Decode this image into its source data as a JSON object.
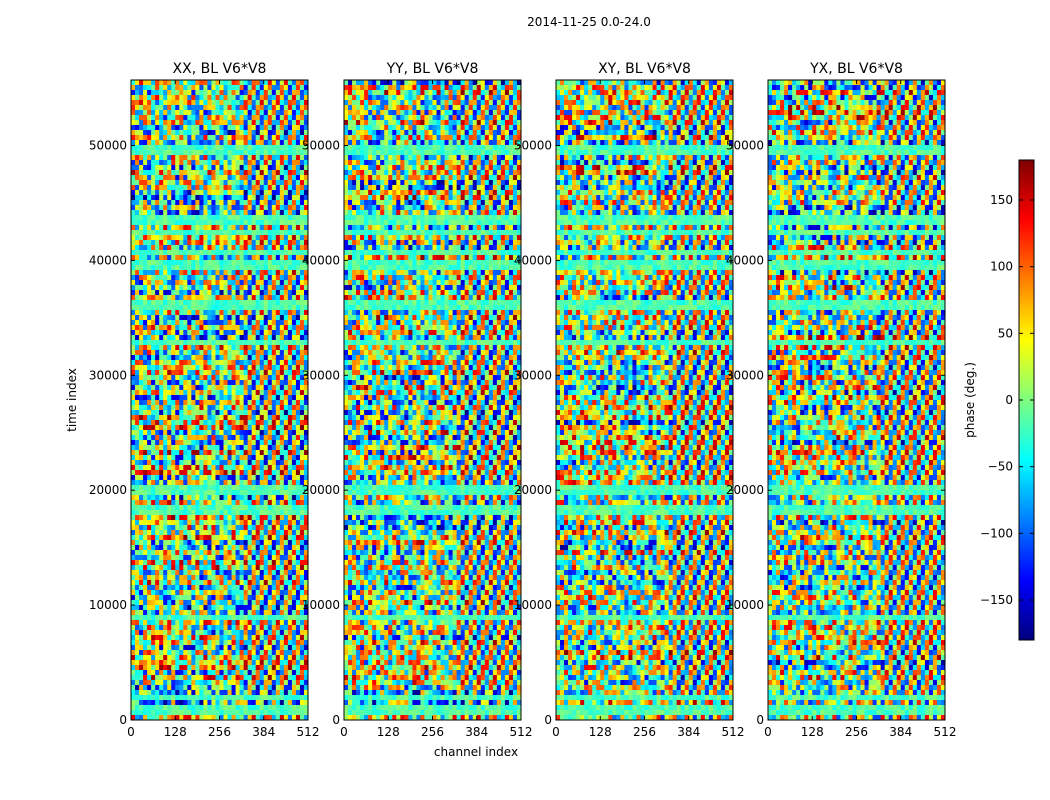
{
  "figure": {
    "suptitle": "2014-11-25 0.0-24.0",
    "xlabel": "channel index",
    "ylabel": "time index"
  },
  "chart_data": [
    {
      "type": "heatmap",
      "title": "XX, BL V6*V8",
      "x_range": [
        0,
        512
      ],
      "y_range": [
        0,
        55700
      ],
      "xticks": [
        0,
        128,
        256,
        384,
        512
      ],
      "yticks": [
        0,
        10000,
        20000,
        30000,
        40000,
        50000
      ],
      "colormap": "jet",
      "value": "phase (deg.)"
    },
    {
      "type": "heatmap",
      "title": "YY, BL V6*V8",
      "x_range": [
        0,
        512
      ],
      "y_range": [
        0,
        55700
      ],
      "xticks": [
        0,
        128,
        256,
        384,
        512
      ],
      "yticks": [
        0,
        10000,
        20000,
        30000,
        40000,
        50000
      ],
      "colormap": "jet",
      "value": "phase (deg.)"
    },
    {
      "type": "heatmap",
      "title": "XY, BL V6*V8",
      "x_range": [
        0,
        512
      ],
      "y_range": [
        0,
        55700
      ],
      "xticks": [
        0,
        128,
        256,
        384,
        512
      ],
      "yticks": [
        0,
        10000,
        20000,
        30000,
        40000,
        50000
      ],
      "colormap": "jet",
      "value": "phase (deg.)"
    },
    {
      "type": "heatmap",
      "title": "YX, BL V6*V8",
      "x_range": [
        0,
        512
      ],
      "y_range": [
        0,
        55700
      ],
      "xticks": [
        0,
        128,
        256,
        384,
        512
      ],
      "yticks": [
        0,
        10000,
        20000,
        30000,
        40000,
        50000
      ],
      "colormap": "jet",
      "value": "phase (deg.)"
    }
  ],
  "colorbar": {
    "label": "phase (deg.)",
    "range": [
      -180,
      180
    ],
    "ticks": [
      150,
      100,
      50,
      0,
      -50,
      -100,
      -150
    ],
    "tick_labels": [
      "150",
      "100",
      "50",
      "0",
      "−50",
      "−100",
      "−150"
    ]
  },
  "colors": {
    "jet_stops": [
      "#00007f",
      "#0000ff",
      "#007fff",
      "#00ffff",
      "#7fff7f",
      "#ffff00",
      "#ff7f00",
      "#ff0000",
      "#7f0000"
    ],
    "band_green": "#7fff7f",
    "band_cyan": "#3fdfff"
  }
}
